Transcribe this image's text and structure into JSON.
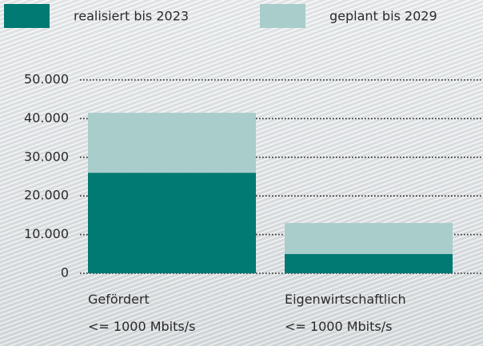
{
  "chart_data": {
    "type": "stacked_bar",
    "categories": [
      "Gefördert\n<= 1000 Mbits/s",
      "Eigenwirtschaftlich\n<= 1000 Mbits/s"
    ],
    "series": [
      {
        "name": "realisiert bis 2023",
        "color": "#007a72",
        "values": [
          26000,
          5000
        ]
      },
      {
        "name": "geplant bis 2029",
        "color": "#a9cdcb",
        "values": [
          15500,
          8000
        ]
      }
    ],
    "ylim": [
      0,
      50000
    ],
    "yticks": [
      0,
      {
        "value": 10000,
        "label": "10.000"
      },
      {
        "value": 20000,
        "label": "20.000"
      },
      {
        "value": 30000,
        "label": "30.000"
      },
      {
        "value": 40000,
        "label": "40.000"
      },
      {
        "value": 50000,
        "label": "50.000"
      }
    ],
    "grid": true
  }
}
